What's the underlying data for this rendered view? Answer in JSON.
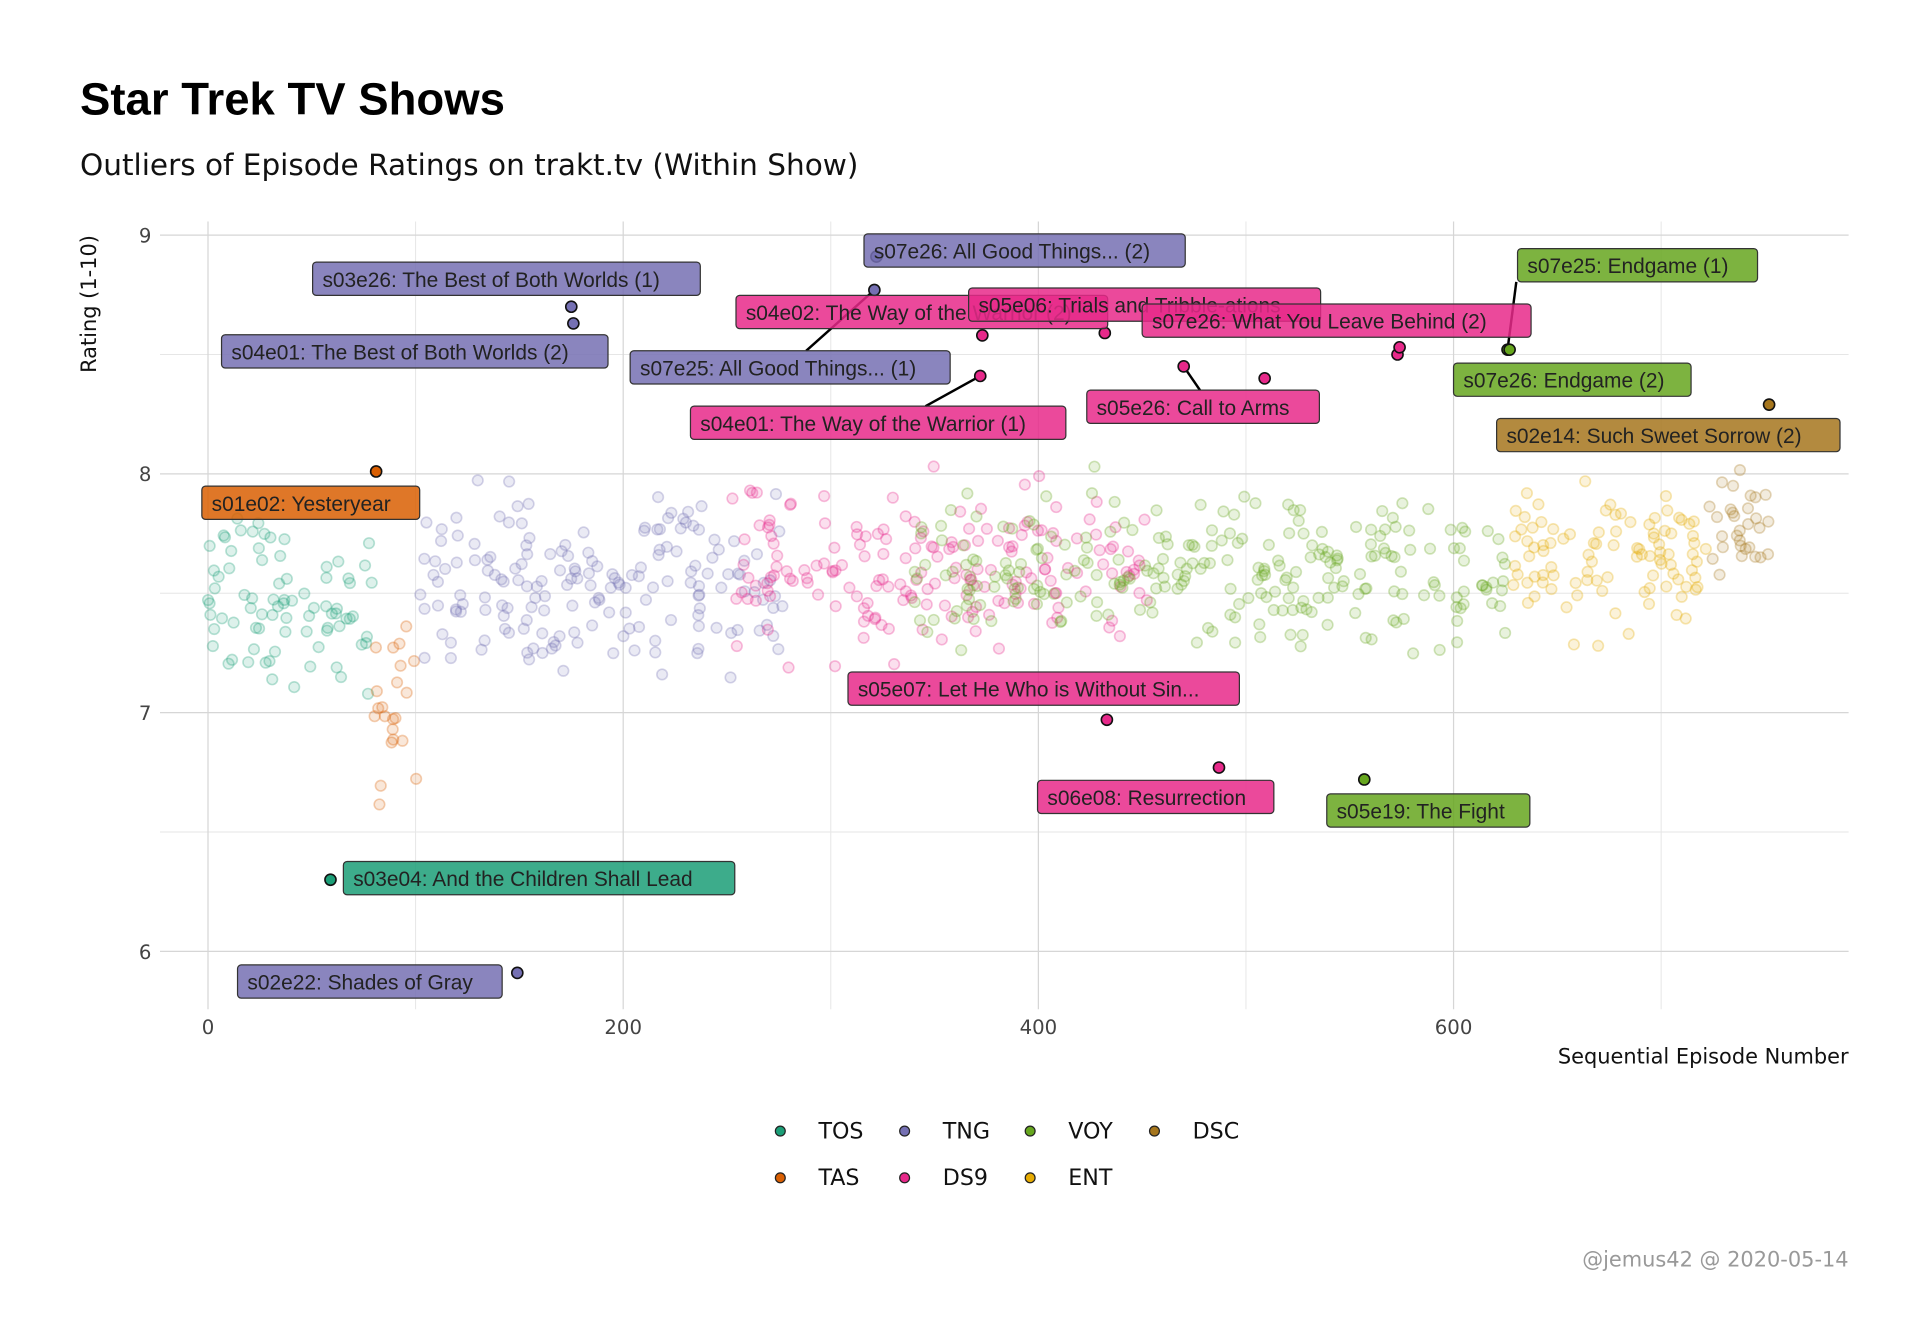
{
  "chart_data": {
    "type": "scatter",
    "title": "Star Trek TV Shows",
    "subtitle": "Outliers of Episode Ratings on trakt.tv (Within Show)",
    "xlabel": "Sequential Episode Number",
    "ylabel": "Rating (1-10)",
    "xlim": [
      -20,
      790
    ],
    "ylim": [
      5.8,
      9.05
    ],
    "x_ticks": [
      "0",
      "200",
      "400",
      "600"
    ],
    "y_ticks": [
      "6",
      "7",
      "8",
      "9"
    ],
    "grid": true,
    "legend_position": "bottom",
    "caption": "@jemus42 @ 2020-05-14",
    "shows": [
      {
        "name": "TOS",
        "color": "#1b9e77",
        "episodes": [
          0,
          79
        ],
        "mean_rating": 7.45,
        "sd": 0.4
      },
      {
        "name": "TAS",
        "color": "#d95f02",
        "episodes": [
          80,
          101
        ],
        "mean_rating": 7.0,
        "sd": 0.3
      },
      {
        "name": "TNG",
        "color": "#7570b3",
        "episodes": [
          102,
          277
        ],
        "mean_rating": 7.55,
        "sd": 0.33
      },
      {
        "name": "DS9",
        "color": "#e7298a",
        "episodes": [
          250,
          453
        ],
        "mean_rating": 7.6,
        "sd": 0.3
      },
      {
        "name": "VOY",
        "color": "#66a61e",
        "episodes": [
          340,
          625
        ],
        "mean_rating": 7.6,
        "sd": 0.28
      },
      {
        "name": "ENT",
        "color": "#e6ab02",
        "episodes": [
          626,
          722
        ],
        "mean_rating": 7.65,
        "sd": 0.25
      },
      {
        "name": "DSC",
        "color": "#a6761d",
        "episodes": [
          723,
          752
        ],
        "mean_rating": 7.8,
        "sd": 0.2
      }
    ],
    "outliers": [
      {
        "show": "TOS",
        "x": 59,
        "y": 6.3,
        "label": "s03e04: And the Children Shall Lead"
      },
      {
        "show": "TAS",
        "x": 81,
        "y": 8.01,
        "label": "s01e02: Yesteryear"
      },
      {
        "show": "TNG",
        "x": 175,
        "y": 8.7,
        "label": "s03e26: The Best of Both Worlds (1)"
      },
      {
        "show": "TNG",
        "x": 176,
        "y": 8.63,
        "label": "s04e01: The Best of Both Worlds (2)"
      },
      {
        "show": "TNG",
        "x": 149,
        "y": 5.91,
        "label": "s02e22: Shades of Gray"
      },
      {
        "show": "TNG",
        "x": 321,
        "y": 8.77,
        "label": "s07e25: All Good Things... (1)"
      },
      {
        "show": "TNG",
        "x": 322,
        "y": 8.91,
        "label": "s07e26: All Good Things... (2)"
      },
      {
        "show": "DS9",
        "x": 372,
        "y": 8.41,
        "label": "s04e01: The Way of the Warrior (1)"
      },
      {
        "show": "DS9",
        "x": 373,
        "y": 8.58,
        "label": "s04e02: The Way of the Warrior (2)"
      },
      {
        "show": "DS9",
        "x": 432,
        "y": 8.59,
        "label": "s05e06: Trials and Tribble-ations"
      },
      {
        "show": "DS9",
        "x": 433,
        "y": 6.97,
        "label": "s05e07: Let He Who is Without Sin..."
      },
      {
        "show": "DS9",
        "x": 470,
        "y": 8.45,
        "label": "s05e26: Call to Arms"
      },
      {
        "show": "DS9",
        "x": 487,
        "y": 6.77,
        "label": "s06e08: Resurrection"
      },
      {
        "show": "DS9",
        "x": 509,
        "y": 8.4,
        "label": ""
      },
      {
        "show": "DS9",
        "x": 573,
        "y": 8.5,
        "label": ""
      },
      {
        "show": "DS9",
        "x": 574,
        "y": 8.53,
        "label": "s07e26: What You Leave Behind (2)"
      },
      {
        "show": "VOY",
        "x": 557,
        "y": 6.72,
        "label": "s05e19: The Fight"
      },
      {
        "show": "VOY",
        "x": 626,
        "y": 8.52,
        "label": "s07e25: Endgame (1)"
      },
      {
        "show": "VOY",
        "x": 627,
        "y": 8.52,
        "label": "s07e26: Endgame (2)"
      },
      {
        "show": "DSC",
        "x": 752,
        "y": 8.29,
        "label": "s02e14: Such Sweet Sorrow (2)"
      }
    ]
  }
}
